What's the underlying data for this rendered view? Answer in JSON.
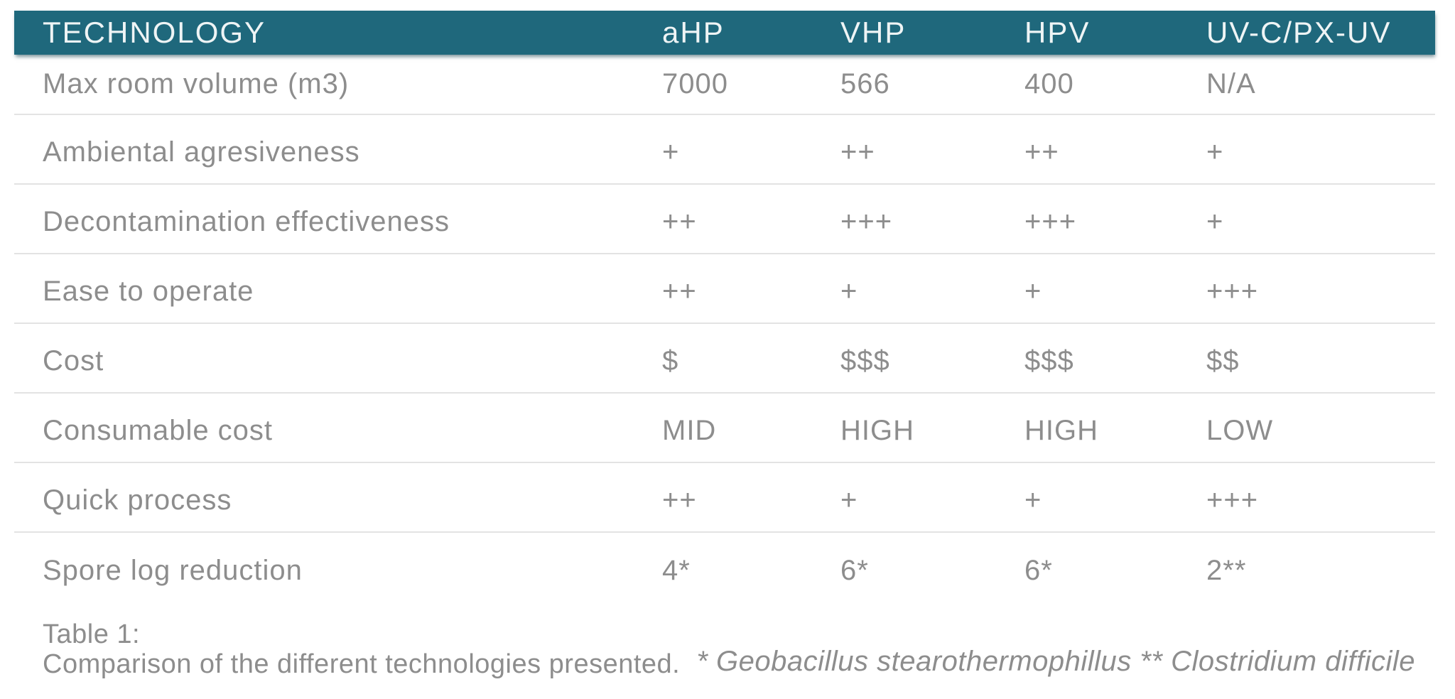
{
  "chart_data": {
    "type": "table",
    "corner_header": "TECHNOLOGY",
    "columns": [
      "aHP",
      "VHP",
      "HPV",
      "UV-C/PX-UV"
    ],
    "rows": [
      {
        "label": "Max room volume (m3)",
        "values": [
          "7000",
          "566",
          "400",
          "N/A"
        ]
      },
      {
        "label": "Ambiental agresiveness",
        "values": [
          "+",
          "++",
          "++",
          "+"
        ]
      },
      {
        "label": "Decontamination effectiveness",
        "values": [
          "++",
          "+++",
          "+++",
          "+"
        ]
      },
      {
        "label": "Ease to operate",
        "values": [
          "++",
          "+",
          "+",
          "+++"
        ]
      },
      {
        "label": "Cost",
        "values": [
          "$",
          "$$$",
          "$$$",
          "$$"
        ]
      },
      {
        "label": "Consumable cost",
        "values": [
          "MID",
          "HIGH",
          "HIGH",
          "LOW"
        ]
      },
      {
        "label": "Quick process",
        "values": [
          "++",
          "+",
          "+",
          "+++"
        ]
      },
      {
        "label": "Spore log reduction",
        "values": [
          "4*",
          "6*",
          "6*",
          "2**"
        ]
      }
    ],
    "caption_title": "Table 1:",
    "caption_text": "Comparison of the different technologies presented.",
    "footnote": "* Geobacillus stearothermophillus ** Clostridium difficile"
  },
  "colors": {
    "header_bg": "#1f687c",
    "header_text": "#eef4f5",
    "body_text": "#8d8d8d",
    "divider": "#e3e3e3",
    "page_bg": "#ffffff"
  }
}
